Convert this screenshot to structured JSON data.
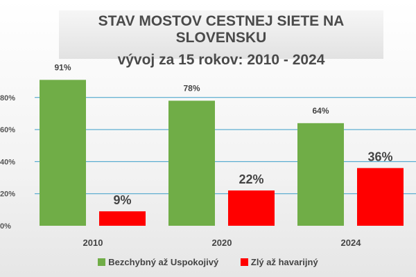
{
  "chart_data": {
    "type": "bar",
    "title": "STAV MOSTOV CESTNEJ SIETE NA SLOVENSKU",
    "subtitle": "vývoj za 15 rokov: 2010 - 2024",
    "categories": [
      "2010",
      "2020",
      "2024"
    ],
    "series": [
      {
        "name": "Bezchybný až Uspokojivý",
        "values": [
          91,
          78,
          64
        ],
        "labels": [
          "91%",
          "78%",
          "64%"
        ],
        "color": "#70ad47"
      },
      {
        "name": "Zlý až havarijný",
        "values": [
          9,
          22,
          36
        ],
        "labels": [
          "9%",
          "22%",
          "36%"
        ],
        "color": "#ff0000"
      }
    ],
    "ylim": [
      0,
      100
    ],
    "yticks": [
      "0%",
      "20%",
      "40%",
      "60%",
      "80%"
    ],
    "grid": true,
    "grid_color": "#3a9ec8",
    "legend": "bottom"
  }
}
